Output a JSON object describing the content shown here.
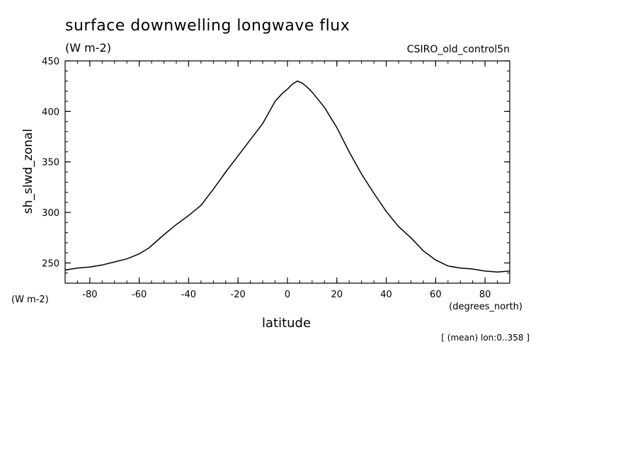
{
  "chart_data": {
    "type": "line",
    "title": "surface downwelling longwave flux",
    "units": "(W m-2)",
    "dataset": "CSIRO_old_control5n",
    "ylabel": "sh_slwd_zonal",
    "yunits": "(W m-2)",
    "xlabel": "latitude",
    "xunits": "(degrees_north)",
    "note": "[ (mean) lon:0..358 ]",
    "xlim": [
      -90,
      90
    ],
    "ylim": [
      230,
      450
    ],
    "xticks": [
      -80,
      -60,
      -40,
      -20,
      0,
      20,
      40,
      60,
      80
    ],
    "yticks": [
      250,
      300,
      350,
      400,
      450
    ],
    "xtick_labels": [
      "-80",
      "-60",
      "-40",
      "-20",
      "0",
      "20",
      "40",
      "60",
      "80"
    ],
    "ytick_labels": [
      "250",
      "300",
      "350",
      "400",
      "450"
    ],
    "grid": false,
    "series": [
      {
        "x": [
          -90,
          -85,
          -80,
          -75,
          -70,
          -65,
          -60,
          -56,
          -50,
          -45,
          -40,
          -35,
          -30,
          -25,
          -20,
          -15,
          -10,
          -5,
          -2,
          0,
          2,
          4,
          6,
          8,
          10,
          15,
          20,
          25,
          30,
          35,
          40,
          45,
          50,
          55,
          60,
          65,
          70,
          75,
          80,
          85,
          90
        ],
        "y": [
          243,
          245,
          246,
          248,
          251,
          254,
          259,
          265,
          278,
          288,
          297,
          307,
          323,
          340,
          356,
          372,
          388,
          410,
          418,
          422,
          427,
          430,
          428,
          424,
          419,
          404,
          384,
          360,
          338,
          319,
          301,
          286,
          275,
          262,
          253,
          247,
          245,
          244,
          242,
          241,
          242
        ]
      }
    ]
  }
}
